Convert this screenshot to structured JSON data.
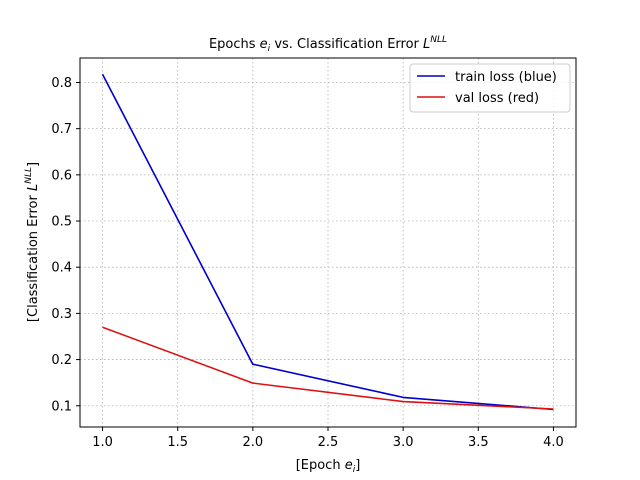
{
  "chart_data": {
    "type": "line",
    "title_main": "Epochs ",
    "title_var": "e",
    "title_sub": "i",
    "title_mid": " vs. Classification Error ",
    "title_loss": "L",
    "title_sup": "NLL",
    "xlabel_open": "[Epoch ",
    "xlabel_var": "e",
    "xlabel_sub": "i",
    "xlabel_close": "]",
    "ylabel_main": "[Classification Error ",
    "ylabel_var": "L",
    "ylabel_sup": "NLL",
    "ylabel_close": "]",
    "x": [
      1.0,
      2.0,
      3.0,
      4.0
    ],
    "series": [
      {
        "name": "train loss (blue)",
        "color": "#0000cc",
        "values": [
          0.818,
          0.19,
          0.118,
          0.092
        ]
      },
      {
        "name": "val loss (red)",
        "color": "#dd1111",
        "values": [
          0.27,
          0.149,
          0.109,
          0.093
        ]
      }
    ],
    "xlim": [
      0.85,
      4.15
    ],
    "ylim": [
      0.054,
      0.853
    ],
    "xticks": [
      "1.0",
      "1.5",
      "2.0",
      "2.5",
      "3.0",
      "3.5",
      "4.0"
    ],
    "yticks": [
      "0.1",
      "0.2",
      "0.3",
      "0.4",
      "0.5",
      "0.6",
      "0.7",
      "0.8"
    ],
    "grid": true,
    "legend_position": "upper right"
  }
}
